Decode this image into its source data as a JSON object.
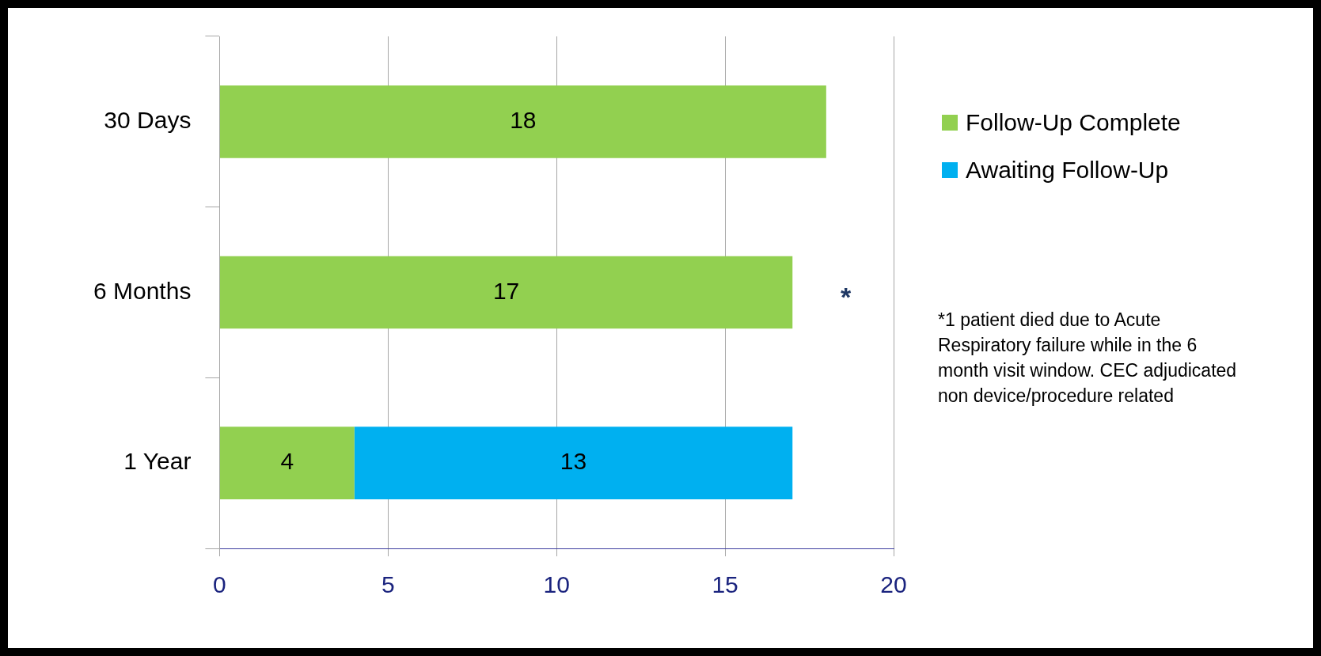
{
  "chart_data": {
    "type": "bar",
    "orientation": "horizontal",
    "stacked": true,
    "categories": [
      "30 Days",
      "6 Months",
      "1 Year"
    ],
    "series": [
      {
        "name": "Follow-Up Complete",
        "color": "#92d050",
        "values": [
          18,
          17,
          4
        ]
      },
      {
        "name": "Awaiting Follow-Up",
        "color": "#00b0f0",
        "values": [
          null,
          null,
          13
        ]
      }
    ],
    "xlim": [
      0,
      20
    ],
    "xticks": [
      0,
      5,
      10,
      15,
      20
    ],
    "grid": "x",
    "legend": "top right",
    "data_labels": true,
    "annotations": [
      "*",
      "*1 patient died due to Acute Respiratory failure while in the 6 month visit window. CEC adjudicated non device/procedure related"
    ]
  }
}
